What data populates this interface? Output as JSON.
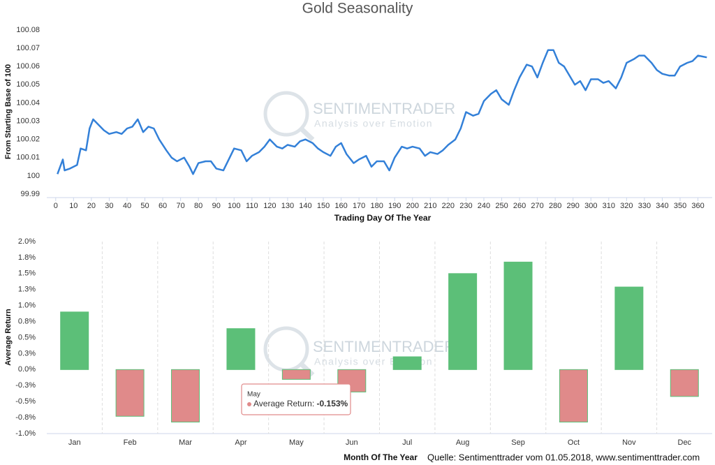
{
  "chart_data": [
    {
      "type": "line",
      "title": "Gold Seasonality",
      "x_label": "Trading Day Of The Year",
      "y_label": "From Starting Base of 100",
      "x": [
        1,
        4,
        5,
        8,
        12,
        14,
        17,
        19,
        21,
        24,
        27,
        30,
        34,
        37,
        40,
        43,
        46,
        49,
        52,
        55,
        58,
        62,
        65,
        68,
        72,
        75,
        77,
        80,
        84,
        87,
        90,
        94,
        97,
        100,
        104,
        107,
        110,
        114,
        117,
        120,
        124,
        127,
        130,
        134,
        137,
        140,
        144,
        147,
        150,
        154,
        157,
        160,
        163,
        167,
        170,
        174,
        177,
        180,
        184,
        187,
        190,
        194,
        197,
        200,
        204,
        207,
        210,
        214,
        217,
        220,
        224,
        227,
        230,
        234,
        237,
        240,
        244,
        247,
        250,
        254,
        257,
        260,
        264,
        267,
        270,
        273,
        276,
        279,
        282,
        285,
        288,
        291,
        294,
        297,
        300,
        304,
        307,
        310,
        314,
        317,
        320,
        324,
        327,
        330,
        334,
        337,
        340,
        344,
        347,
        350,
        354,
        357,
        360,
        365
      ],
      "values": [
        100.001,
        100.009,
        100.003,
        100.004,
        100.006,
        100.015,
        100.014,
        100.026,
        100.031,
        100.028,
        100.025,
        100.023,
        100.024,
        100.023,
        100.026,
        100.027,
        100.031,
        100.024,
        100.027,
        100.026,
        100.02,
        100.014,
        100.01,
        100.008,
        100.01,
        100.005,
        100.001,
        100.007,
        100.008,
        100.008,
        100.004,
        100.003,
        100.009,
        100.015,
        100.014,
        100.008,
        100.011,
        100.013,
        100.016,
        100.02,
        100.016,
        100.015,
        100.017,
        100.016,
        100.019,
        100.02,
        100.018,
        100.015,
        100.013,
        100.011,
        100.016,
        100.018,
        100.012,
        100.007,
        100.009,
        100.011,
        100.005,
        100.008,
        100.008,
        100.003,
        100.01,
        100.016,
        100.015,
        100.016,
        100.015,
        100.011,
        100.013,
        100.012,
        100.014,
        100.017,
        100.02,
        100.026,
        100.035,
        100.033,
        100.034,
        100.041,
        100.045,
        100.047,
        100.042,
        100.039,
        100.047,
        100.054,
        100.061,
        100.06,
        100.054,
        100.062,
        100.069,
        100.069,
        100.062,
        100.06,
        100.055,
        100.05,
        100.052,
        100.047,
        100.053,
        100.053,
        100.051,
        100.052,
        100.048,
        100.054,
        100.062,
        100.064,
        100.066,
        100.066,
        100.062,
        100.058,
        100.056,
        100.055,
        100.055,
        100.06,
        100.062,
        100.063,
        100.066,
        100.065
      ],
      "color": "#3380d8",
      "xlim": [
        -5,
        368
      ],
      "xticks": [
        0,
        10,
        20,
        30,
        40,
        50,
        60,
        70,
        80,
        90,
        100,
        110,
        120,
        130,
        140,
        150,
        160,
        170,
        180,
        190,
        200,
        210,
        220,
        230,
        240,
        250,
        260,
        270,
        280,
        290,
        300,
        310,
        320,
        330,
        340,
        350,
        360
      ],
      "ylim": [
        99.99,
        100.08
      ],
      "yticks": [
        99.99,
        100,
        100.01,
        100.02,
        100.03,
        100.04,
        100.05,
        100.06,
        100.07,
        100.08
      ],
      "grid": false
    },
    {
      "type": "bar",
      "x_label": "Month Of The Year",
      "y_label": "Average Return",
      "series_name": "Average Return",
      "categories": [
        "Jan",
        "Feb",
        "Mar",
        "Apr",
        "May",
        "Jun",
        "Jul",
        "Aug",
        "Sep",
        "Oct",
        "Nov",
        "Dec"
      ],
      "values": [
        0.9,
        -0.73,
        -0.82,
        0.64,
        -0.153,
        -0.35,
        0.2,
        1.5,
        1.68,
        -0.82,
        1.29,
        -0.42
      ],
      "colors": {
        "positive": "#5cbf78",
        "negative": "#e08a8a"
      },
      "ylim": [
        -1,
        2
      ],
      "yticks": [
        {
          "value": -1,
          "label": "-1.0%"
        },
        {
          "value": -0.75,
          "label": "-0.8%"
        },
        {
          "value": -0.5,
          "label": "-0.5%"
        },
        {
          "value": -0.25,
          "label": "-0.3%"
        },
        {
          "value": 0,
          "label": "0.0%"
        },
        {
          "value": 0.25,
          "label": "0.3%"
        },
        {
          "value": 0.5,
          "label": "0.5%"
        },
        {
          "value": 0.75,
          "label": "0.8%"
        },
        {
          "value": 1,
          "label": "1.0%"
        },
        {
          "value": 1.25,
          "label": "1.3%"
        },
        {
          "value": 1.5,
          "label": "1.5%"
        },
        {
          "value": 1.75,
          "label": "1.8%"
        },
        {
          "value": 2,
          "label": "2.0%"
        }
      ],
      "category_grid": true,
      "tooltip": {
        "title": "May",
        "label": "Average Return:",
        "value": "-0.153%"
      }
    }
  ],
  "watermark": {
    "brand": "SENTIMENTRADER",
    "tagline": "Analysis over Emotion"
  },
  "source": "Quelle: Sentimenttrader vom 01.05.2018, www.sentimenttrader.com"
}
